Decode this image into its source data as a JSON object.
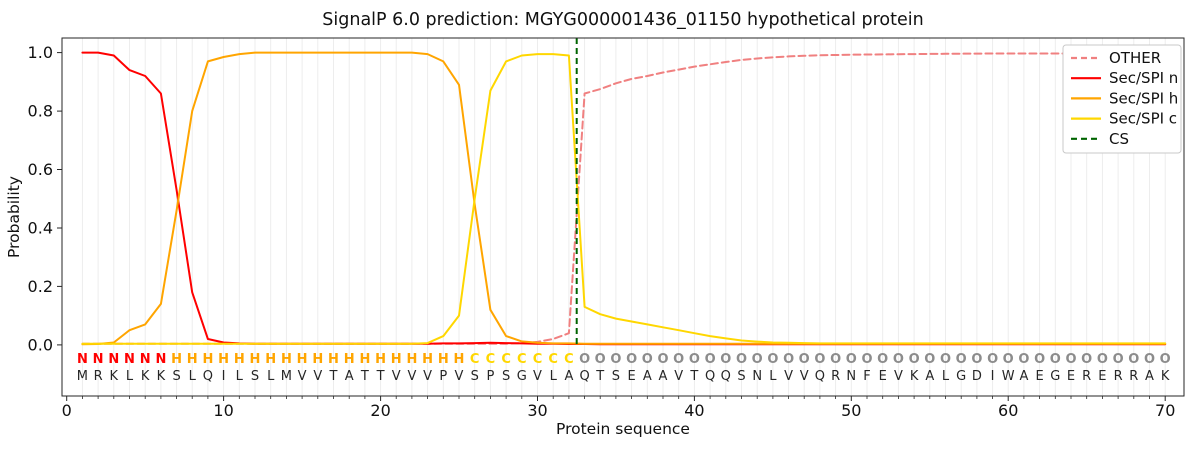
{
  "chart_data": {
    "type": "line",
    "title": "SignalP 6.0 prediction: MGYG000001436_01150 hypothetical protein",
    "xlabel": "Protein sequence",
    "ylabel": "Probability",
    "xticks": [
      0,
      10,
      20,
      30,
      40,
      50,
      60,
      70
    ],
    "yticks": [
      0.0,
      0.2,
      0.4,
      0.6,
      0.8,
      1.0
    ],
    "xlim": [
      -0.3,
      71.2
    ],
    "ylim": [
      -0.175,
      1.05
    ],
    "grid": "vertical-per-residue",
    "legend_position": "upper-right",
    "sequence": "MRKLKKSLQILSLMVVTATTVVVPVSPSGVLAQTSEAAVTQQSNLVVQRNFEVKALGDIWAEGERERRAK",
    "labels": "NNNNNNHHHHHHHHHHHHHHHHHHHCCCCCCCOOOOOOOOOOOOOOOOOOOOOOOOOOOOOOOOOOOOOO",
    "state_colors": {
      "N": "#ff0000",
      "H": "#ffa500",
      "C": "#ffd700",
      "O": "#8c8c8c"
    },
    "residue_color": "#262626",
    "series": [
      {
        "name": "OTHER",
        "color": "#f08080",
        "dash": true,
        "values": [
          0.004,
          0.004,
          0.004,
          0.004,
          0.004,
          0.004,
          0.004,
          0.004,
          0.004,
          0.004,
          0.004,
          0.004,
          0.004,
          0.004,
          0.004,
          0.004,
          0.004,
          0.004,
          0.004,
          0.004,
          0.004,
          0.004,
          0.004,
          0.004,
          0.004,
          0.004,
          0.004,
          0.004,
          0.006,
          0.01,
          0.02,
          0.04,
          0.86,
          0.875,
          0.895,
          0.91,
          0.92,
          0.932,
          0.942,
          0.952,
          0.96,
          0.968,
          0.975,
          0.98,
          0.984,
          0.987,
          0.989,
          0.991,
          0.992,
          0.993,
          0.9935,
          0.994,
          0.9945,
          0.995,
          0.9955,
          0.996,
          0.9962,
          0.9965,
          0.9968,
          0.997,
          0.997,
          0.997,
          0.997,
          0.997,
          0.997,
          0.997,
          0.997,
          0.997,
          0.997,
          0.997
        ]
      },
      {
        "name": "Sec/SPI n",
        "color": "#ff0000",
        "dash": false,
        "values": [
          1.0,
          1.0,
          0.99,
          0.94,
          0.92,
          0.86,
          0.53,
          0.18,
          0.02,
          0.008,
          0.005,
          0.004,
          0.004,
          0.004,
          0.004,
          0.004,
          0.004,
          0.004,
          0.004,
          0.004,
          0.004,
          0.004,
          0.004,
          0.005,
          0.005,
          0.006,
          0.007,
          0.006,
          0.005,
          0.004,
          0.004,
          0.003,
          0.003,
          0.002,
          0.002,
          0.002,
          0.002,
          0.002,
          0.002,
          0.002,
          0.002,
          0.002,
          0.002,
          0.002,
          0.002,
          0.002,
          0.002,
          0.002,
          0.002,
          0.002,
          0.002,
          0.002,
          0.002,
          0.002,
          0.002,
          0.002,
          0.002,
          0.002,
          0.002,
          0.002,
          0.002,
          0.002,
          0.002,
          0.002,
          0.002,
          0.002,
          0.002,
          0.002,
          0.002,
          0.002
        ]
      },
      {
        "name": "Sec/SPI h",
        "color": "#ffa500",
        "dash": false,
        "values": [
          0.002,
          0.003,
          0.008,
          0.05,
          0.07,
          0.14,
          0.46,
          0.8,
          0.97,
          0.985,
          0.995,
          1.0,
          1.0,
          1.0,
          1.0,
          1.0,
          1.0,
          1.0,
          1.0,
          1.0,
          1.0,
          1.0,
          0.995,
          0.97,
          0.89,
          0.48,
          0.12,
          0.03,
          0.012,
          0.007,
          0.005,
          0.005,
          0.004,
          0.004,
          0.004,
          0.004,
          0.004,
          0.004,
          0.004,
          0.004,
          0.004,
          0.004,
          0.004,
          0.004,
          0.004,
          0.004,
          0.004,
          0.004,
          0.004,
          0.004,
          0.004,
          0.004,
          0.004,
          0.004,
          0.004,
          0.004,
          0.004,
          0.004,
          0.004,
          0.004,
          0.004,
          0.004,
          0.004,
          0.004,
          0.004,
          0.004,
          0.004,
          0.004,
          0.004,
          0.004
        ]
      },
      {
        "name": "Sec/SPI c",
        "color": "#ffd700",
        "dash": false,
        "values": [
          0.004,
          0.004,
          0.004,
          0.004,
          0.004,
          0.004,
          0.004,
          0.004,
          0.004,
          0.004,
          0.004,
          0.004,
          0.004,
          0.004,
          0.004,
          0.004,
          0.004,
          0.004,
          0.004,
          0.004,
          0.004,
          0.004,
          0.006,
          0.03,
          0.1,
          0.5,
          0.87,
          0.97,
          0.99,
          0.995,
          0.995,
          0.99,
          0.13,
          0.105,
          0.09,
          0.08,
          0.07,
          0.06,
          0.05,
          0.04,
          0.03,
          0.022,
          0.015,
          0.011,
          0.008,
          0.007,
          0.006,
          0.005,
          0.005,
          0.005,
          0.005,
          0.005,
          0.005,
          0.005,
          0.005,
          0.005,
          0.005,
          0.005,
          0.005,
          0.005,
          0.005,
          0.005,
          0.005,
          0.005,
          0.005,
          0.005,
          0.005,
          0.005,
          0.005,
          0.005
        ]
      }
    ],
    "cs_line": {
      "name": "CS",
      "x": 32.5,
      "color": "#006400",
      "dash": true
    }
  }
}
